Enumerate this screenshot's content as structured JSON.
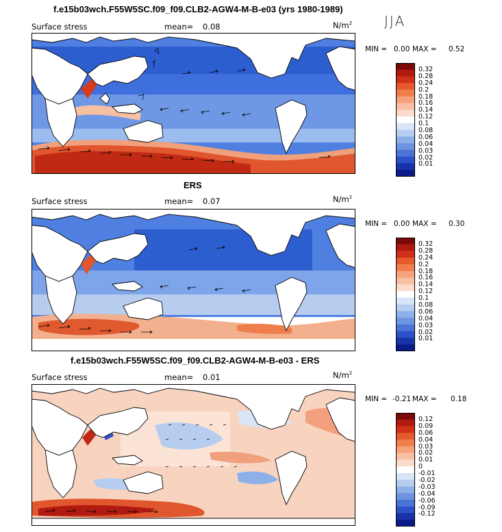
{
  "season": "JJA",
  "panels": [
    {
      "title": "f.e15b03wch.F55W5SC.f09_f09.CLB2-AGW4-M-B-e03 (yrs 1980-1989)",
      "left_label": "Surface stress",
      "mean_label": "mean=",
      "mean_value": "0.08",
      "units": "N/m",
      "units_sup": "2",
      "min_label": "MIN =",
      "min_value": "0.00",
      "max_label": "MAX =",
      "max_value": "0.52",
      "colorbar": {
        "colors": [
          "#7a0a0a",
          "#b01a10",
          "#d03018",
          "#e55a2c",
          "#f07e4c",
          "#f5a27a",
          "#f8c0a2",
          "#fbdccb",
          "#ffffff",
          "#d7e5f7",
          "#b6cdf0",
          "#8eb0e8",
          "#6e93e0",
          "#4c74d6",
          "#2b52c8",
          "#1832a8",
          "#0a1a88"
        ],
        "labels": [
          "0.32",
          "0.28",
          "0.24",
          "0.2",
          "0.18",
          "0.16",
          "0.14",
          "0.12",
          "0.1",
          "0.08",
          "0.06",
          "0.04",
          "0.03",
          "0.02",
          "0.01"
        ]
      }
    },
    {
      "title": "ERS",
      "left_label": "Surface stress",
      "mean_label": "mean=",
      "mean_value": "0.07",
      "units": "N/m",
      "units_sup": "2",
      "min_label": "MIN =",
      "min_value": "0.00",
      "max_label": "MAX =",
      "max_value": "0.30",
      "colorbar": {
        "colors": [
          "#7a0a0a",
          "#b01a10",
          "#d03018",
          "#e55a2c",
          "#f07e4c",
          "#f5a27a",
          "#f8c0a2",
          "#fbdccb",
          "#ffffff",
          "#d7e5f7",
          "#b6cdf0",
          "#8eb0e8",
          "#6e93e0",
          "#4c74d6",
          "#2b52c8",
          "#1832a8",
          "#0a1a88"
        ],
        "labels": [
          "0.32",
          "0.28",
          "0.24",
          "0.2",
          "0.18",
          "0.16",
          "0.14",
          "0.12",
          "0.1",
          "0.08",
          "0.06",
          "0.04",
          "0.03",
          "0.02",
          "0.01"
        ]
      }
    },
    {
      "title": "f.e15b03wch.F55W5SC.f09_f09.CLB2-AGW4-M-B-e03 - ERS",
      "left_label": "Surface stress",
      "mean_label": "mean=",
      "mean_value": "0.01",
      "units": "N/m",
      "units_sup": "2",
      "min_label": "MIN =",
      "min_value": "-0.21",
      "max_label": "MAX =",
      "max_value": "0.18",
      "colorbar": {
        "colors": [
          "#7a0a0a",
          "#b01a10",
          "#d03018",
          "#e55a2c",
          "#f07e4c",
          "#f5a27a",
          "#f8c0a2",
          "#fbdccb",
          "#ffffff",
          "#d7e5f7",
          "#b6cdf0",
          "#8eb0e8",
          "#6e93e0",
          "#4c74d6",
          "#2b52c8",
          "#1832a8",
          "#0a1a88"
        ],
        "labels": [
          "0.12",
          "0.09",
          "0.06",
          "0.04",
          "0.03",
          "0.02",
          "0.01",
          "0",
          "-0.01",
          "-0.02",
          "-0.03",
          "-0.04",
          "-0.06",
          "-0.09",
          "-0.12"
        ]
      }
    }
  ]
}
